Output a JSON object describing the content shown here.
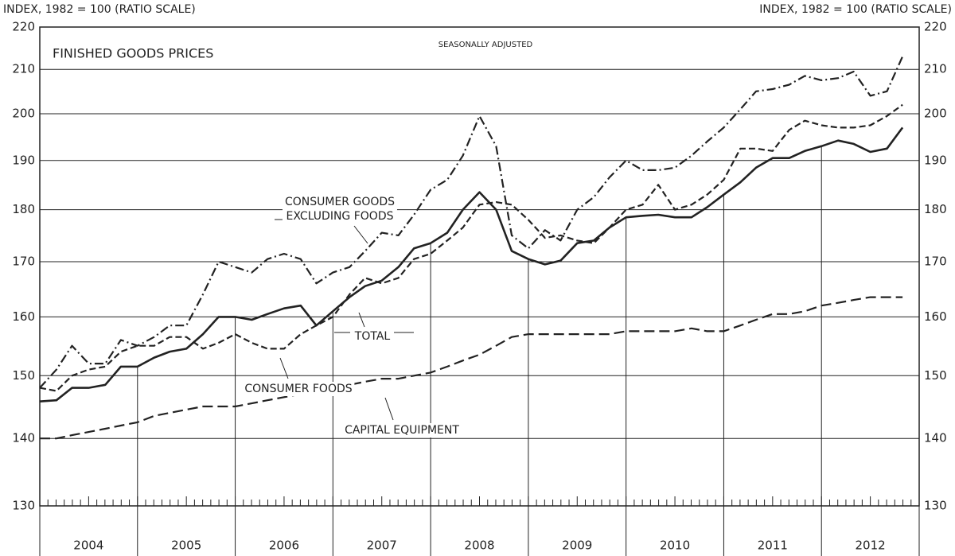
{
  "chart_data": {
    "type": "line",
    "title": "FINISHED GOODS PRICES",
    "subtitle": "SEASONALLY ADJUSTED",
    "y_axis_label": "INDEX, 1982 = 100  (RATIO SCALE)",
    "y2_axis_label": "INDEX, 1982 = 100  (RATIO SCALE)",
    "yscale": "log",
    "ylim": [
      130,
      220
    ],
    "yticks": [
      130,
      140,
      150,
      160,
      170,
      180,
      190,
      200,
      210,
      220
    ],
    "xlim": [
      2004,
      2013
    ],
    "xticks": [
      2004,
      2005,
      2006,
      2007,
      2008,
      2009,
      2010,
      2011,
      2012,
      2013
    ],
    "year_labels": [
      "2004",
      "2005",
      "2006",
      "2007",
      "2008",
      "2009",
      "2010",
      "2011",
      "2012"
    ],
    "grid": true,
    "x": [
      2004.0,
      2004.17,
      2004.33,
      2004.5,
      2004.67,
      2004.83,
      2005.0,
      2005.17,
      2005.33,
      2005.5,
      2005.67,
      2005.83,
      2006.0,
      2006.17,
      2006.33,
      2006.5,
      2006.67,
      2006.83,
      2007.0,
      2007.17,
      2007.33,
      2007.5,
      2007.67,
      2007.83,
      2008.0,
      2008.17,
      2008.33,
      2008.5,
      2008.67,
      2008.83,
      2009.0,
      2009.17,
      2009.33,
      2009.5,
      2009.67,
      2009.83,
      2010.0,
      2010.17,
      2010.33,
      2010.5,
      2010.67,
      2010.83,
      2011.0,
      2011.17,
      2011.33,
      2011.5,
      2011.67,
      2011.83,
      2012.0,
      2012.17,
      2012.33,
      2012.5,
      2012.67,
      2012.83
    ],
    "series": [
      {
        "name": "CONSUMER GOODS\nEXCLUDING FOODS",
        "color": "#222222",
        "dash": "11 4 2 4",
        "values": [
          148,
          151,
          155,
          152,
          152,
          156,
          155,
          156.5,
          158.5,
          158.5,
          164,
          170,
          169,
          168,
          170.5,
          171.5,
          170.5,
          166,
          168,
          169,
          172,
          175.5,
          175,
          179,
          184,
          186,
          191,
          199.5,
          193,
          175,
          172.5,
          176,
          174,
          180,
          182.5,
          186.5,
          190,
          188,
          188,
          188.5,
          191,
          194,
          197,
          201,
          205,
          205.5,
          206.5,
          208.5,
          207.5,
          208,
          209.5,
          204,
          205,
          213
        ]
      },
      {
        "name": "TOTAL",
        "color": "#222222",
        "dash": "",
        "values": [
          145.8,
          146,
          148,
          148,
          148.5,
          151.5,
          151.5,
          153,
          154,
          154.5,
          157,
          160,
          160,
          159.5,
          160.5,
          161.5,
          162,
          158.5,
          161,
          163.5,
          165.5,
          166.5,
          169,
          172.5,
          173.5,
          175.5,
          180,
          183.5,
          180,
          172,
          170.5,
          169.5,
          170.2,
          173.5,
          174,
          176.5,
          178.5,
          178.8,
          179,
          178.5,
          178.5,
          180.5,
          183,
          185.5,
          188.5,
          190.5,
          190.5,
          192,
          193,
          194.2,
          193.5,
          191.8,
          192.5,
          197
        ]
      },
      {
        "name": "CONSUMER FOODS",
        "color": "#222222",
        "dash": "8 4",
        "values": [
          148,
          147.5,
          150,
          151,
          151.5,
          154,
          155,
          155,
          156.5,
          156.5,
          154.5,
          155.5,
          157,
          155.5,
          154.5,
          154.5,
          157,
          158.5,
          160,
          164,
          167,
          166,
          167,
          170.5,
          171.5,
          174,
          176.5,
          181,
          181.5,
          181,
          178,
          174.5,
          175,
          174,
          173.5,
          176.5,
          180,
          181,
          185,
          180,
          181,
          183,
          186,
          192.5,
          192.5,
          192,
          196.5,
          198.5,
          197.5,
          197,
          197,
          197.5,
          199.5,
          202
        ]
      },
      {
        "name": "CAPITAL EQUIPMENT",
        "color": "#222222",
        "dash": "13 6",
        "values": [
          140,
          140,
          140.5,
          141,
          141.5,
          142,
          142.5,
          143.5,
          144,
          144.5,
          145,
          145,
          145,
          145.5,
          146,
          146.5,
          147,
          147,
          148,
          148.5,
          149,
          149.5,
          149.5,
          150,
          150.5,
          151.5,
          152.5,
          153.5,
          155,
          156.5,
          157,
          157,
          157,
          157,
          157,
          157,
          157.5,
          157.5,
          157.5,
          157.5,
          158,
          157.5,
          157.5,
          158.5,
          159.5,
          160.5,
          160.5,
          161,
          162,
          162.5,
          163,
          163.5,
          163.5,
          163.5
        ]
      }
    ]
  }
}
